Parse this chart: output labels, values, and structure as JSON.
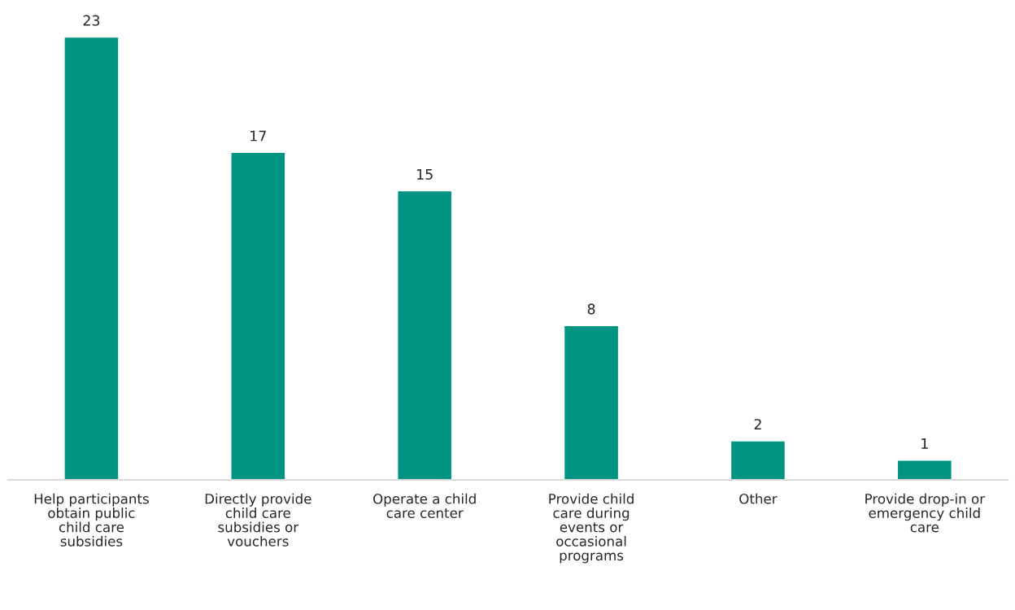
{
  "chart_data": {
    "type": "bar",
    "categories": [
      "Help participants\nobtain public\nchild care\nsubsidies",
      "Directly provide\nchild care\nsubsidies or\nvouchers",
      "Operate a child\ncare center",
      "Provide child\ncare during\nevents or\noccasional\nprograms",
      "Other",
      "Provide drop-in or\nemergency child\ncare"
    ],
    "values": [
      23,
      17,
      15,
      8,
      2,
      1
    ],
    "color": "#009482",
    "data_labels": true,
    "grid": false,
    "legend": false
  }
}
